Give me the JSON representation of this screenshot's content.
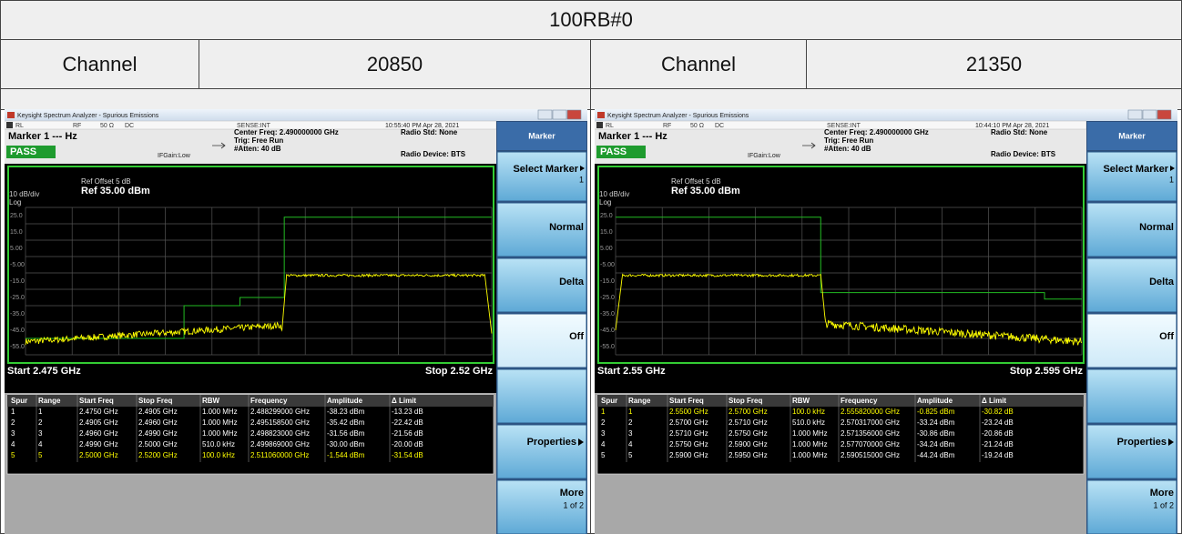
{
  "header": {
    "title": "100RB#0"
  },
  "channels": [
    {
      "label": "Channel",
      "value": "20850"
    },
    {
      "label": "Channel",
      "value": "21350"
    }
  ],
  "panels": [
    {
      "window_title": "Keysight Spectrum Analyzer - Spurious Emissions",
      "status": {
        "rl": "RL",
        "rf": "RF",
        "impedance": "50 Ω",
        "coupling": "DC",
        "sense": "SENSE:INT",
        "timestamp": "10:55:40 PM Apr 28, 2021"
      },
      "marker": "Marker 1 --- Hz",
      "pass": "PASS",
      "center_freq": "Center Freq: 2.490000000 GHz",
      "trig": "Trig: Free Run",
      "atten": "#Atten: 40 dB",
      "if_gain": "IFGain:Low",
      "radio_std": "Radio Std: None",
      "radio_device": "Radio Device: BTS",
      "ref_offset": "Ref Offset 5 dB",
      "ref_level": "Ref 35.00 dBm",
      "scale": "10 dB/div",
      "scale_type": "Log",
      "y_labels": [
        "25.0",
        "15.0",
        "5.00",
        "-5.00",
        "-15.0",
        "-25.0",
        "-35.0",
        "-45.0",
        "-55.0"
      ],
      "start": "Start 2.475 GHz",
      "stop": "Stop 2.52 GHz",
      "table": {
        "columns": [
          "Spur",
          "Range",
          "Start Freq",
          "Stop Freq",
          "RBW",
          "Frequency",
          "Amplitude",
          "Δ Limit"
        ],
        "rows": [
          [
            "1",
            "1",
            "2.4750 GHz",
            "2.4905 GHz",
            "1.000 MHz",
            "2.488299000 GHz",
            "-38.23 dBm",
            "-13.23 dB"
          ],
          [
            "2",
            "2",
            "2.4905 GHz",
            "2.4960 GHz",
            "1.000 MHz",
            "2.495158500 GHz",
            "-35.42 dBm",
            "-22.42 dB"
          ],
          [
            "3",
            "3",
            "2.4960 GHz",
            "2.4990 GHz",
            "1.000 MHz",
            "2.498823000 GHz",
            "-31.56 dBm",
            "-21.56 dB"
          ],
          [
            "4",
            "4",
            "2.4990 GHz",
            "2.5000 GHz",
            "510.0 kHz",
            "2.499869000 GHz",
            "-30.00 dBm",
            "-20.00 dB"
          ],
          [
            "5",
            "5",
            "2.5000 GHz",
            "2.5200 GHz",
            "100.0 kHz",
            "2.511060000 GHz",
            "-1.544 dBm",
            "-31.54 dB"
          ]
        ],
        "highlight_row": 4
      },
      "softkeys": {
        "title": "Marker",
        "select": "Select Marker",
        "select_value": "1",
        "normal": "Normal",
        "delta": "Delta",
        "off": "Off",
        "properties": "Properties",
        "more": "More",
        "more_page": "1 of 2"
      }
    },
    {
      "window_title": "Keysight Spectrum Analyzer - Spurious Emissions",
      "status": {
        "rl": "RL",
        "rf": "RF",
        "impedance": "50 Ω",
        "coupling": "DC",
        "sense": "SENSE:INT",
        "timestamp": "10:44:10 PM Apr 28, 2021"
      },
      "marker": "Marker 1 --- Hz",
      "pass": "PASS",
      "center_freq": "Center Freq: 2.490000000 GHz",
      "trig": "Trig: Free Run",
      "atten": "#Atten: 40 dB",
      "if_gain": "IFGain:Low",
      "radio_std": "Radio Std: None",
      "radio_device": "Radio Device: BTS",
      "ref_offset": "Ref Offset 5 dB",
      "ref_level": "Ref 35.00 dBm",
      "scale": "10 dB/div",
      "scale_type": "Log",
      "y_labels": [
        "25.0",
        "15.0",
        "5.00",
        "-5.00",
        "-15.0",
        "-25.0",
        "-35.0",
        "-45.0",
        "-55.0"
      ],
      "start": "Start 2.55 GHz",
      "stop": "Stop 2.595 GHz",
      "table": {
        "columns": [
          "Spur",
          "Range",
          "Start Freq",
          "Stop Freq",
          "RBW",
          "Frequency",
          "Amplitude",
          "Δ Limit"
        ],
        "rows": [
          [
            "1",
            "1",
            "2.5500 GHz",
            "2.5700 GHz",
            "100.0 kHz",
            "2.555820000 GHz",
            "-0.825 dBm",
            "-30.82 dB"
          ],
          [
            "2",
            "2",
            "2.5700 GHz",
            "2.5710 GHz",
            "510.0 kHz",
            "2.570317000 GHz",
            "-33.24 dBm",
            "-23.24 dB"
          ],
          [
            "3",
            "3",
            "2.5710 GHz",
            "2.5750 GHz",
            "1.000 MHz",
            "2.571356000 GHz",
            "-30.86 dBm",
            "-20.86 dB"
          ],
          [
            "4",
            "4",
            "2.5750 GHz",
            "2.5900 GHz",
            "1.000 MHz",
            "2.577070000 GHz",
            "-34.24 dBm",
            "-21.24 dB"
          ],
          [
            "5",
            "5",
            "2.5900 GHz",
            "2.5950 GHz",
            "1.000 MHz",
            "2.590515000 GHz",
            "-44.24 dBm",
            "-19.24 dB"
          ]
        ],
        "highlight_row": 0
      },
      "softkeys": {
        "title": "Marker",
        "select": "Select Marker",
        "select_value": "1",
        "normal": "Normal",
        "delta": "Delta",
        "off": "Off",
        "properties": "Properties",
        "more": "More",
        "more_page": "1 of 2"
      }
    }
  ]
}
